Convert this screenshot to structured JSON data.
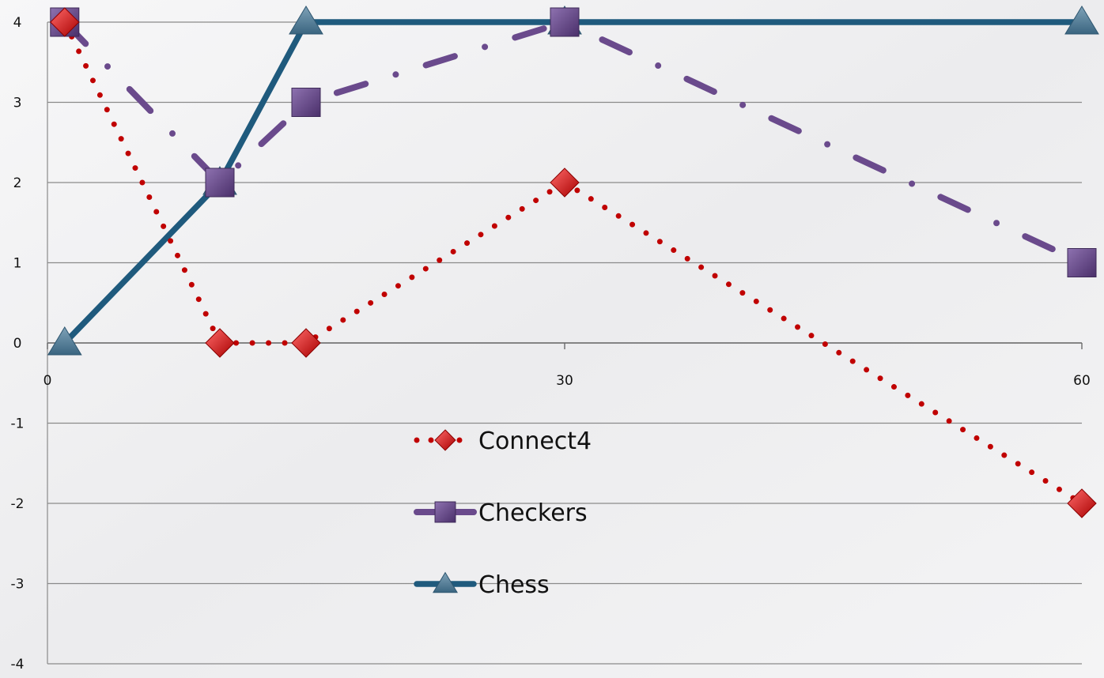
{
  "chart_data": {
    "type": "line",
    "x_ticks": [
      "0",
      "30",
      "60"
    ],
    "y_ticks": [
      "4",
      "3",
      "2",
      "1",
      "0",
      "-1",
      "-2",
      "-3",
      "-4"
    ],
    "xlim": [
      0,
      60
    ],
    "ylim": [
      -4,
      4
    ],
    "grid": "horizontal",
    "legend_position": "center",
    "series": [
      {
        "name": "Connect4",
        "color": "#c00000",
        "line_style": "dotted",
        "marker": "diamond",
        "x": [
          1,
          10,
          15,
          30,
          60
        ],
        "y": [
          4,
          0,
          0,
          2,
          -2
        ]
      },
      {
        "name": "Checkers",
        "color": "#6a4a8c",
        "line_style": "dash-dot",
        "marker": "square",
        "x": [
          1,
          10,
          15,
          30,
          60
        ],
        "y": [
          4,
          2,
          3,
          4,
          1
        ]
      },
      {
        "name": "Chess",
        "color": "#1f5a7d",
        "line_style": "solid",
        "marker": "triangle",
        "x": [
          1,
          10,
          15,
          30,
          60
        ],
        "y": [
          0,
          2,
          4,
          4,
          4
        ]
      }
    ]
  }
}
